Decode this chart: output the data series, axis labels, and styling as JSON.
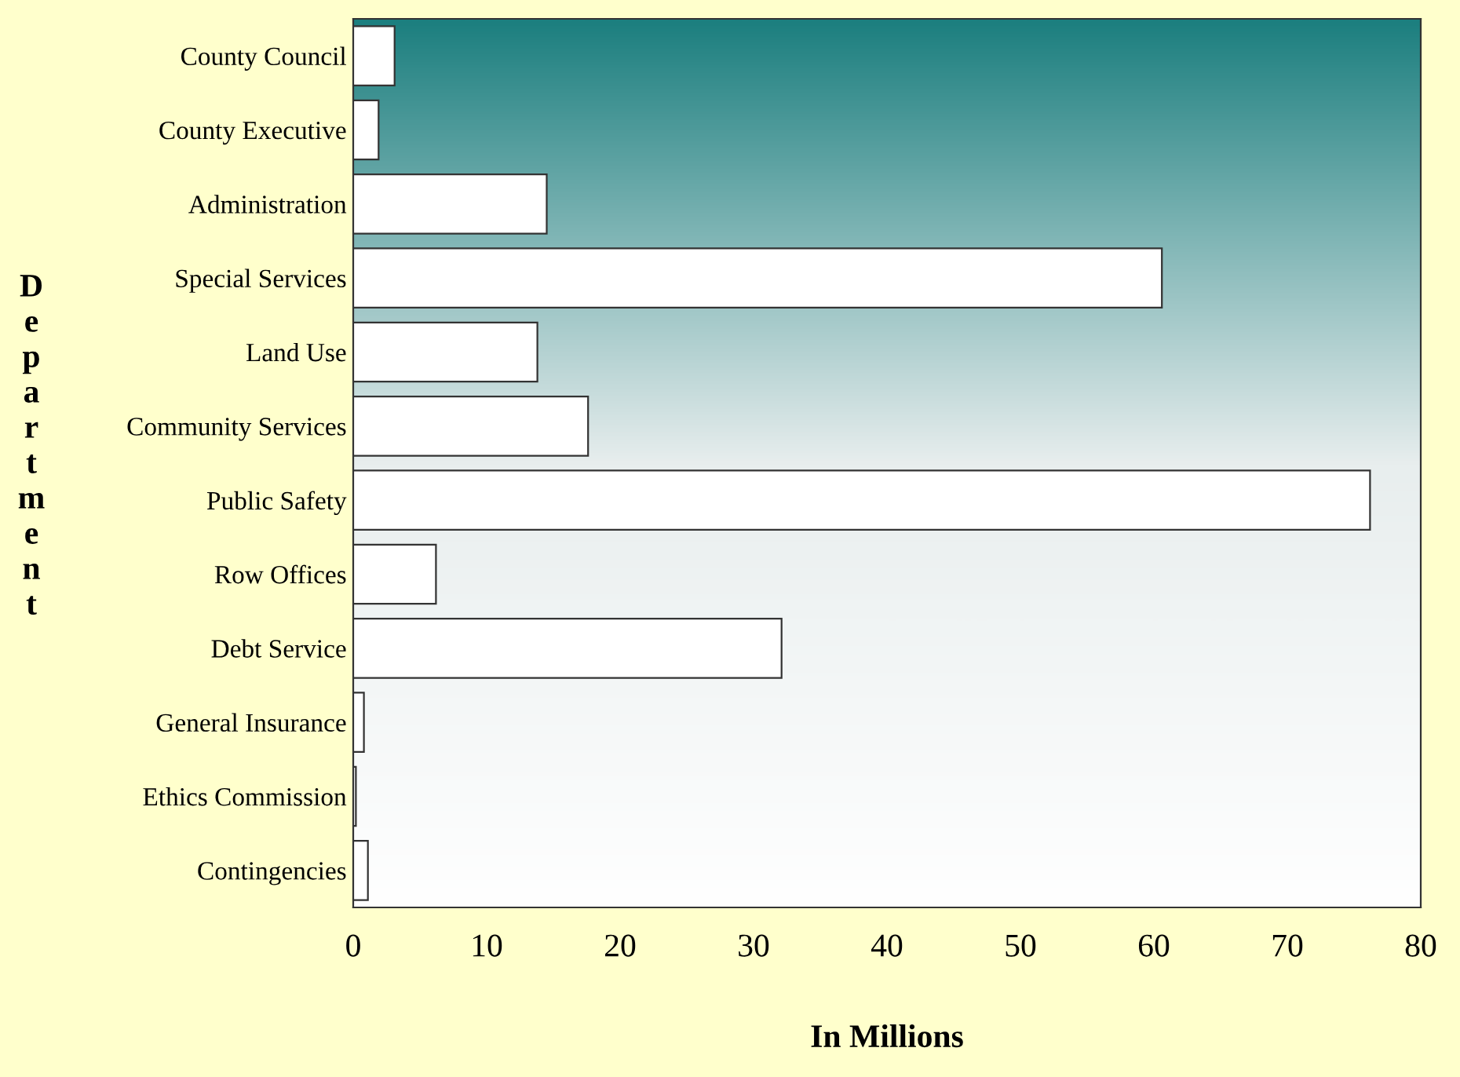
{
  "chart_data": {
    "type": "bar",
    "orientation": "horizontal",
    "categories": [
      "County Council",
      "County Executive",
      "Administration",
      "Special Services",
      "Land Use",
      "Community Services",
      "Public Safety",
      "Row Offices",
      "Debt Service",
      "General Insurance",
      "Ethics Commission",
      "Contingencies"
    ],
    "values": [
      3.1,
      1.9,
      14.5,
      60.6,
      13.8,
      17.6,
      76.2,
      6.2,
      32.1,
      0.8,
      0.2,
      1.1
    ],
    "color": "#ffffff",
    "xlim": [
      0,
      80
    ],
    "xticks": [
      0,
      10,
      20,
      30,
      40,
      50,
      60,
      70,
      80
    ],
    "xlabel": "In Millions",
    "ylabel": "Department",
    "grid": false
  }
}
